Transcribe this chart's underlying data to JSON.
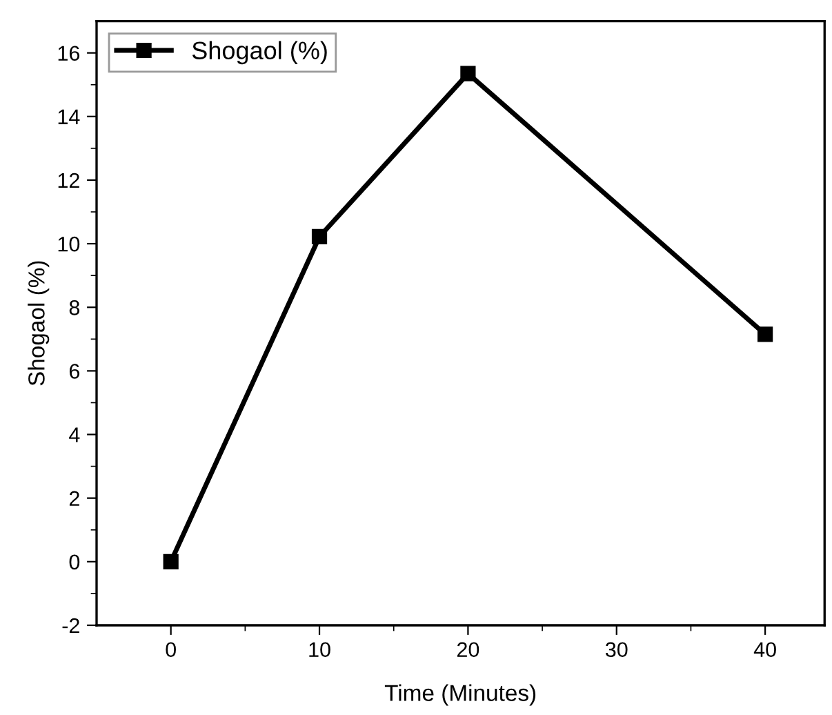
{
  "chart_data": {
    "type": "line",
    "xlabel": "Time (Minutes)",
    "ylabel": "Shogaol (%)",
    "x": [
      0,
      10,
      20,
      40
    ],
    "series": [
      {
        "name": "Shogaol (%)",
        "color": "#000000",
        "values": [
          0,
          10.22,
          15.35,
          7.15
        ]
      }
    ],
    "xlim": [
      -5,
      44
    ],
    "ylim": [
      -2,
      17
    ],
    "xticks": [
      0,
      {
        "value": 5,
        "label": null
      },
      10,
      {
        "value": 15,
        "label": null
      },
      20,
      {
        "value": 25,
        "label": null
      },
      30,
      {
        "value": 35,
        "label": null
      },
      40
    ],
    "yticks": [
      -2,
      {
        "value": -1,
        "label": null
      },
      0,
      {
        "value": 1,
        "label": null
      },
      2,
      {
        "value": 3,
        "label": null
      },
      4,
      {
        "value": 5,
        "label": null
      },
      6,
      {
        "value": 7,
        "label": null
      },
      8,
      {
        "value": 9,
        "label": null
      },
      10,
      {
        "value": 11,
        "label": null
      },
      12,
      {
        "value": 13,
        "label": null
      },
      14,
      {
        "value": 15,
        "label": null
      },
      16
    ],
    "marker": "square",
    "line_style": "solid",
    "legend": "top left",
    "grid": false
  }
}
